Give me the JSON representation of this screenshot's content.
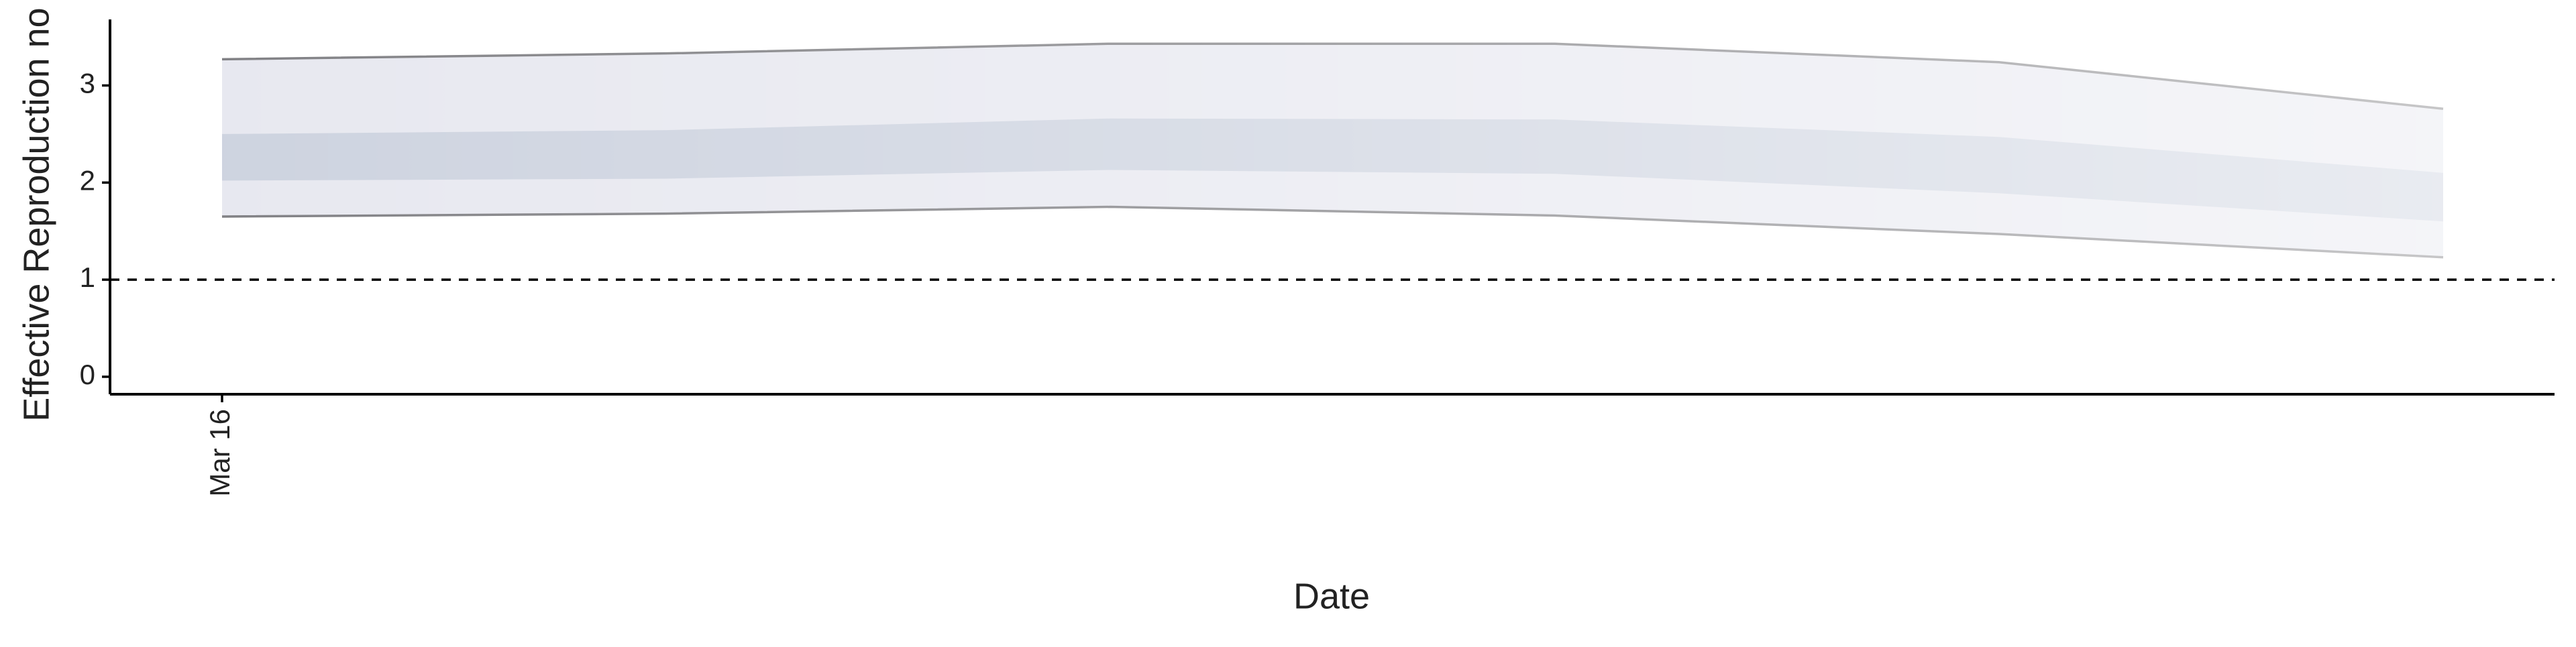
{
  "chart_data": {
    "type": "ribbon",
    "x_label": "Date",
    "y_label": "Effective Reproduction no",
    "categories": [
      "Mar 16",
      null,
      null,
      null,
      null,
      null
    ],
    "outer_upper": [
      3.27,
      3.33,
      3.43,
      3.43,
      3.24,
      2.76
    ],
    "outer_lower": [
      1.65,
      1.68,
      1.75,
      1.66,
      1.47,
      1.23
    ],
    "inner_upper": [
      2.5,
      2.54,
      2.66,
      2.65,
      2.47,
      2.1
    ],
    "inner_lower": [
      2.02,
      2.04,
      2.13,
      2.09,
      1.89,
      1.6
    ],
    "outer_color": "#e6e7ef",
    "inner_color": "#cbd1de",
    "line_color": "#7a7a7e",
    "reference_line": 1,
    "ylim": [
      -0.18,
      3.68
    ],
    "yticks": [
      0,
      1,
      2,
      3
    ]
  }
}
